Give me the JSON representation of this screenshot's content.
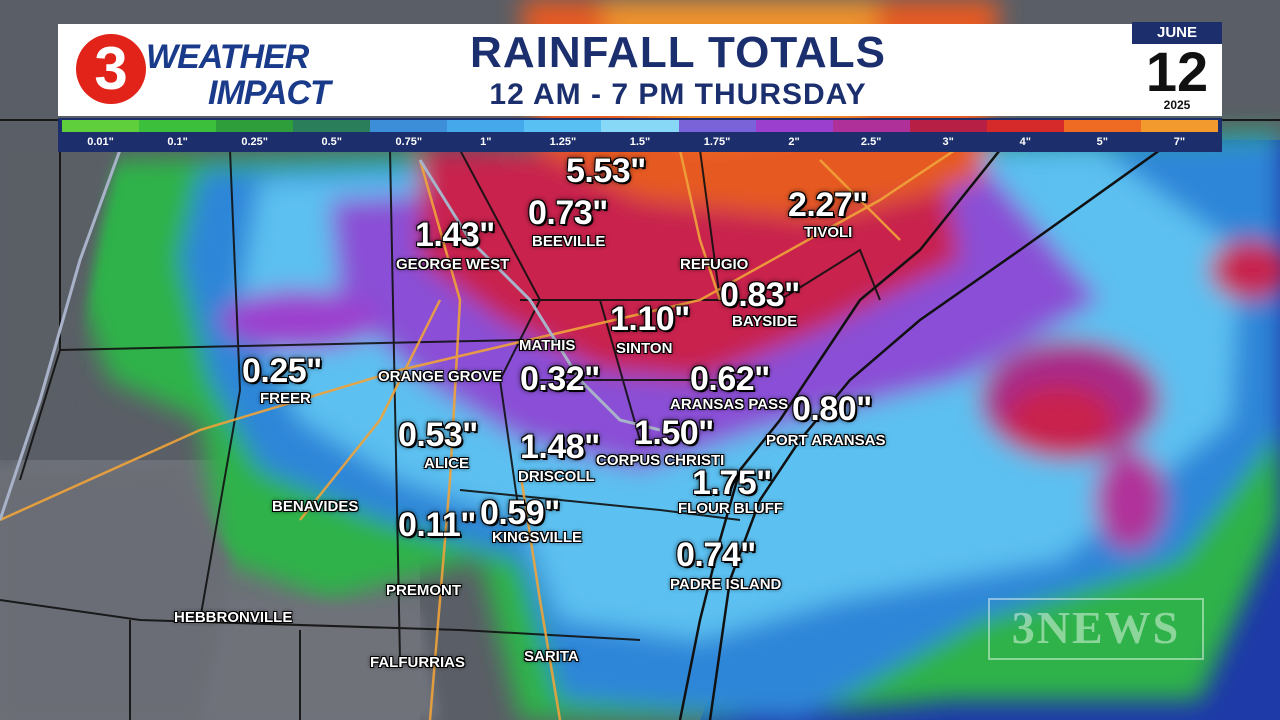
{
  "header": {
    "logo_number": "3",
    "logo_line1": "WEATHER",
    "logo_line2": "IMPACT",
    "title": "RAINFALL TOTALS",
    "subtitle": "12 AM - 7 PM THURSDAY"
  },
  "date": {
    "month": "JUNE",
    "day": "12",
    "year": "2025"
  },
  "legend": [
    {
      "label": "0.01\"",
      "color": "#5fcf3c"
    },
    {
      "label": "0.1\"",
      "color": "#3cbf3a"
    },
    {
      "label": "0.25\"",
      "color": "#2e9e3a"
    },
    {
      "label": "0.5\"",
      "color": "#2a7f5a"
    },
    {
      "label": "0.75\"",
      "color": "#3c8ed8"
    },
    {
      "label": "1\"",
      "color": "#45a8ea"
    },
    {
      "label": "1.25\"",
      "color": "#58c0f2"
    },
    {
      "label": "1.5\"",
      "color": "#86d8f6"
    },
    {
      "label": "1.75\"",
      "color": "#7a63d9"
    },
    {
      "label": "2\"",
      "color": "#9b3fcf"
    },
    {
      "label": "2.5\"",
      "color": "#b0309a"
    },
    {
      "label": "3\"",
      "color": "#b81f45"
    },
    {
      "label": "4\"",
      "color": "#d62a2a"
    },
    {
      "label": "5\"",
      "color": "#ef6a22"
    },
    {
      "label": "7\"",
      "color": "#f29a2e"
    }
  ],
  "totals": [
    {
      "id": "5-53",
      "value": "5.53\"",
      "city": ""
    },
    {
      "id": "beeville",
      "value": "0.73\"",
      "city": "BEEVILLE"
    },
    {
      "id": "george-west",
      "value": "1.43\"",
      "city": "GEORGE WEST"
    },
    {
      "id": "tivoli",
      "value": "2.27\"",
      "city": "TIVOLI"
    },
    {
      "id": "bayside",
      "value": "0.83\"",
      "city": "BAYSIDE"
    },
    {
      "id": "sinton",
      "value": "1.10\"",
      "city": "SINTON"
    },
    {
      "id": "freer",
      "value": "0.25\"",
      "city": "FREER"
    },
    {
      "id": "mathis",
      "value": "0.32\"",
      "city": "MATHIS"
    },
    {
      "id": "aransas-pass",
      "value": "0.62\"",
      "city": "ARANSAS PASS"
    },
    {
      "id": "port-aransas",
      "value": "0.80\"",
      "city": "PORT ARANSAS"
    },
    {
      "id": "alice",
      "value": "0.53\"",
      "city": "ALICE"
    },
    {
      "id": "driscoll",
      "value": "1.48\"",
      "city": "DRISCOLL"
    },
    {
      "id": "corpus-christi",
      "value": "1.50\"",
      "city": "CORPUS CHRISTI"
    },
    {
      "id": "flour-bluff",
      "value": "1.75\"",
      "city": "FLOUR BLUFF"
    },
    {
      "id": "kingsville",
      "value": "0.59\"",
      "city": "KINGSVILLE"
    },
    {
      "id": "premont",
      "value": "0.11\"",
      "city": "PREMONT"
    },
    {
      "id": "padre-island",
      "value": "0.74\"",
      "city": "PADRE ISLAND"
    }
  ],
  "places": {
    "refugio": "REFUGIO",
    "orange_grove": "ORANGE GROVE",
    "benavides": "BENAVIDES",
    "hebbronville": "HEBBRONVILLE",
    "falfurrias": "FALFURRIAS",
    "sarita": "SARITA"
  },
  "watermark": "3NEWS"
}
